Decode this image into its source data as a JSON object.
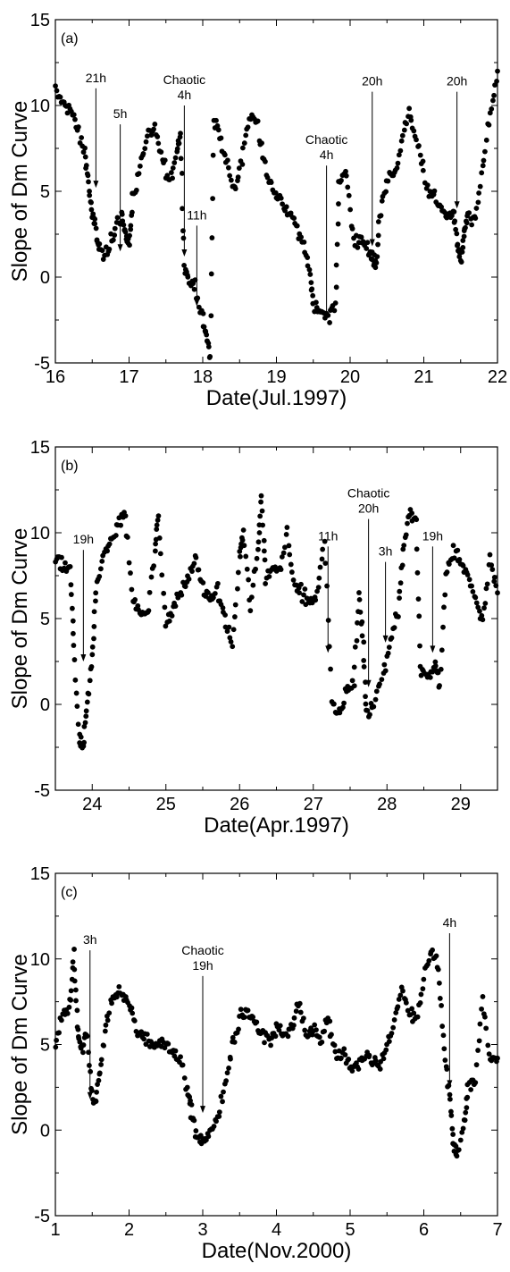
{
  "chart_data": [
    {
      "type": "scatter",
      "panel_label": "(a)",
      "xlabel": "Date(Jul.1997)",
      "ylabel": "Slope of Dm Curve",
      "xlim": [
        16,
        22
      ],
      "ylim": [
        -5,
        15
      ],
      "xticks": [
        16,
        17,
        18,
        19,
        20,
        21,
        22
      ],
      "yticks": [
        -5,
        0,
        5,
        10,
        15
      ],
      "anchors": [
        [
          16.0,
          10.8
        ],
        [
          16.1,
          10.2
        ],
        [
          16.2,
          9.8
        ],
        [
          16.3,
          8.5
        ],
        [
          16.4,
          7.3
        ],
        [
          16.45,
          5.5
        ],
        [
          16.5,
          3.5
        ],
        [
          16.55,
          2.8
        ],
        [
          16.6,
          1.5
        ],
        [
          16.7,
          1.4
        ],
        [
          16.8,
          2.8
        ],
        [
          16.9,
          3.6
        ],
        [
          16.95,
          2.5
        ],
        [
          17.0,
          2.0
        ],
        [
          17.05,
          4.5
        ],
        [
          17.15,
          6.3
        ],
        [
          17.25,
          8.0
        ],
        [
          17.35,
          8.5
        ],
        [
          17.45,
          7.0
        ],
        [
          17.55,
          5.5
        ],
        [
          17.65,
          7.5
        ],
        [
          17.7,
          8.2
        ],
        [
          17.75,
          0.8
        ],
        [
          17.8,
          0.0
        ],
        [
          17.9,
          -0.5
        ],
        [
          18.0,
          -2.5
        ],
        [
          18.05,
          -3.5
        ],
        [
          18.1,
          -4.5
        ],
        [
          18.15,
          9.2
        ],
        [
          18.25,
          8.0
        ],
        [
          18.35,
          6.2
        ],
        [
          18.45,
          5.0
        ],
        [
          18.55,
          7.5
        ],
        [
          18.65,
          9.5
        ],
        [
          18.75,
          8.8
        ],
        [
          18.85,
          6.5
        ],
        [
          18.95,
          4.9
        ],
        [
          19.05,
          4.6
        ],
        [
          19.15,
          3.8
        ],
        [
          19.25,
          3.2
        ],
        [
          19.35,
          2.0
        ],
        [
          19.45,
          0.5
        ],
        [
          19.5,
          -1.5
        ],
        [
          19.6,
          -2.0
        ],
        [
          19.7,
          -2.5
        ],
        [
          19.8,
          -1.5
        ],
        [
          19.85,
          5.5
        ],
        [
          19.95,
          6.0
        ],
        [
          20.05,
          2.0
        ],
        [
          20.15,
          2.3
        ],
        [
          20.25,
          1.5
        ],
        [
          20.3,
          1.2
        ],
        [
          20.35,
          0.5
        ],
        [
          20.4,
          3.5
        ],
        [
          20.5,
          5.5
        ],
        [
          20.6,
          6.0
        ],
        [
          20.7,
          8.0
        ],
        [
          20.8,
          9.5
        ],
        [
          20.9,
          8.0
        ],
        [
          21.0,
          6.0
        ],
        [
          21.1,
          4.8
        ],
        [
          21.2,
          4.2
        ],
        [
          21.3,
          3.6
        ],
        [
          21.4,
          3.8
        ],
        [
          21.45,
          2.0
        ],
        [
          21.5,
          1.0
        ],
        [
          21.55,
          2.5
        ],
        [
          21.6,
          3.5
        ],
        [
          21.7,
          3.2
        ],
        [
          21.8,
          6.5
        ],
        [
          21.9,
          9.5
        ],
        [
          22.0,
          12.0
        ]
      ],
      "annotations": [
        {
          "lines": [
            "21h"
          ],
          "x": 16.55,
          "y_from": 11.0,
          "y_to": 5.2
        },
        {
          "lines": [
            "5h"
          ],
          "x": 16.88,
          "y_from": 8.9,
          "y_to": 1.5
        },
        {
          "lines": [
            "Chaotic",
            "4h"
          ],
          "x": 17.75,
          "y_from": 10.0,
          "y_to": 1.2
        },
        {
          "lines": [
            "11h"
          ],
          "x": 17.92,
          "y_from": 3.0,
          "y_to": -1.7
        },
        {
          "lines": [
            "Chaotic",
            "4h"
          ],
          "x": 19.68,
          "y_from": 6.5,
          "y_to": -2.5
        },
        {
          "lines": [
            "20h"
          ],
          "x": 20.3,
          "y_from": 10.8,
          "y_to": 1.8
        },
        {
          "lines": [
            "20h"
          ],
          "x": 21.45,
          "y_from": 10.8,
          "y_to": 4.0
        }
      ]
    },
    {
      "type": "scatter",
      "panel_label": "(b)",
      "xlabel": "Date(Apr.1997)",
      "ylabel": "Slope of Dm Curve",
      "xlim": [
        23.5,
        29.5
      ],
      "ylim": [
        -5,
        15
      ],
      "xticks": [
        24,
        25,
        26,
        27,
        28,
        29
      ],
      "yticks": [
        -5,
        0,
        5,
        10,
        15
      ],
      "anchors": [
        [
          23.5,
          8.2
        ],
        [
          23.6,
          8.1
        ],
        [
          23.7,
          7.8
        ],
        [
          23.75,
          3.5
        ],
        [
          23.82,
          -2.0
        ],
        [
          23.88,
          -2.6
        ],
        [
          23.93,
          0.0
        ],
        [
          24.0,
          2.8
        ],
        [
          24.05,
          6.8
        ],
        [
          24.15,
          8.5
        ],
        [
          24.25,
          9.5
        ],
        [
          24.35,
          10.5
        ],
        [
          24.45,
          11.0
        ],
        [
          24.55,
          6.0
        ],
        [
          24.65,
          5.5
        ],
        [
          24.75,
          5.2
        ],
        [
          24.85,
          9.0
        ],
        [
          24.9,
          11.0
        ],
        [
          25.0,
          4.5
        ],
        [
          25.1,
          5.5
        ],
        [
          25.2,
          6.5
        ],
        [
          25.3,
          7.2
        ],
        [
          25.4,
          8.5
        ],
        [
          25.5,
          6.8
        ],
        [
          25.6,
          6.2
        ],
        [
          25.7,
          6.6
        ],
        [
          25.8,
          5.0
        ],
        [
          25.9,
          3.5
        ],
        [
          26.0,
          8.5
        ],
        [
          26.05,
          10.0
        ],
        [
          26.15,
          5.5
        ],
        [
          26.25,
          9.0
        ],
        [
          26.3,
          12.0
        ],
        [
          26.35,
          7.5
        ],
        [
          26.45,
          8.0
        ],
        [
          26.55,
          7.8
        ],
        [
          26.65,
          10.0
        ],
        [
          26.75,
          6.8
        ],
        [
          26.85,
          6.5
        ],
        [
          26.95,
          6.0
        ],
        [
          27.05,
          6.2
        ],
        [
          27.15,
          9.8
        ],
        [
          27.25,
          0.3
        ],
        [
          27.35,
          -0.5
        ],
        [
          27.45,
          0.8
        ],
        [
          27.55,
          1.2
        ],
        [
          27.62,
          6.5
        ],
        [
          27.68,
          3.5
        ],
        [
          27.72,
          -0.5
        ],
        [
          27.82,
          0.0
        ],
        [
          27.95,
          1.8
        ],
        [
          28.05,
          3.8
        ],
        [
          28.15,
          5.5
        ],
        [
          28.22,
          9.0
        ],
        [
          28.3,
          11.2
        ],
        [
          28.4,
          10.5
        ],
        [
          28.45,
          2.0
        ],
        [
          28.55,
          1.5
        ],
        [
          28.65,
          2.5
        ],
        [
          28.72,
          1.0
        ],
        [
          28.8,
          7.5
        ],
        [
          28.9,
          9.0
        ],
        [
          29.0,
          8.5
        ],
        [
          29.1,
          7.5
        ],
        [
          29.2,
          6.0
        ],
        [
          29.3,
          4.8
        ],
        [
          29.4,
          8.5
        ],
        [
          29.5,
          6.5
        ]
      ],
      "annotations": [
        {
          "lines": [
            "19h"
          ],
          "x": 23.88,
          "y_from": 9.0,
          "y_to": 2.5
        },
        {
          "lines": [
            "11h"
          ],
          "x": 27.2,
          "y_from": 9.2,
          "y_to": 3.0
        },
        {
          "lines": [
            "Chaotic",
            "20h"
          ],
          "x": 27.75,
          "y_from": 10.8,
          "y_to": 1.0
        },
        {
          "lines": [
            "3h"
          ],
          "x": 27.98,
          "y_from": 8.3,
          "y_to": 3.6
        },
        {
          "lines": [
            "19h"
          ],
          "x": 28.62,
          "y_from": 9.2,
          "y_to": 3.0
        }
      ]
    },
    {
      "type": "scatter",
      "panel_label": "(c)",
      "xlabel": "Date(Nov.2000)",
      "ylabel": "Slope of Dm Curve",
      "xlim": [
        1,
        7
      ],
      "ylim": [
        -5,
        15
      ],
      "xticks": [
        1,
        2,
        3,
        4,
        5,
        6,
        7
      ],
      "yticks": [
        -5,
        0,
        5,
        10,
        15
      ],
      "anchors": [
        [
          1.0,
          5.0
        ],
        [
          1.1,
          6.8
        ],
        [
          1.2,
          7.2
        ],
        [
          1.25,
          10.5
        ],
        [
          1.3,
          6.0
        ],
        [
          1.35,
          4.5
        ],
        [
          1.42,
          5.8
        ],
        [
          1.5,
          2.0
        ],
        [
          1.55,
          1.5
        ],
        [
          1.62,
          4.0
        ],
        [
          1.7,
          6.5
        ],
        [
          1.8,
          7.8
        ],
        [
          1.9,
          8.0
        ],
        [
          2.0,
          7.5
        ],
        [
          2.1,
          5.8
        ],
        [
          2.2,
          5.5
        ],
        [
          2.3,
          5.2
        ],
        [
          2.4,
          5.0
        ],
        [
          2.5,
          5.0
        ],
        [
          2.6,
          4.5
        ],
        [
          2.7,
          4.2
        ],
        [
          2.8,
          2.0
        ],
        [
          2.85,
          1.0
        ],
        [
          2.92,
          -0.5
        ],
        [
          3.0,
          -0.8
        ],
        [
          3.1,
          -0.2
        ],
        [
          3.2,
          0.8
        ],
        [
          3.3,
          2.5
        ],
        [
          3.4,
          5.0
        ],
        [
          3.5,
          6.5
        ],
        [
          3.6,
          7.0
        ],
        [
          3.7,
          6.5
        ],
        [
          3.8,
          5.5
        ],
        [
          3.9,
          5.0
        ],
        [
          4.0,
          6.0
        ],
        [
          4.1,
          5.5
        ],
        [
          4.2,
          6.0
        ],
        [
          4.3,
          7.5
        ],
        [
          4.4,
          5.5
        ],
        [
          4.5,
          6.0
        ],
        [
          4.6,
          5.0
        ],
        [
          4.7,
          6.5
        ],
        [
          4.8,
          4.5
        ],
        [
          4.9,
          4.5
        ],
        [
          5.0,
          4.0
        ],
        [
          5.1,
          3.8
        ],
        [
          5.2,
          4.5
        ],
        [
          5.3,
          4.2
        ],
        [
          5.4,
          3.8
        ],
        [
          5.5,
          5.0
        ],
        [
          5.6,
          6.5
        ],
        [
          5.7,
          8.5
        ],
        [
          5.8,
          7.0
        ],
        [
          5.9,
          6.5
        ],
        [
          6.0,
          9.0
        ],
        [
          6.1,
          10.5
        ],
        [
          6.2,
          9.5
        ],
        [
          6.28,
          4.5
        ],
        [
          6.35,
          2.0
        ],
        [
          6.4,
          -0.8
        ],
        [
          6.45,
          -1.5
        ],
        [
          6.55,
          0.5
        ],
        [
          6.6,
          2.5
        ],
        [
          6.7,
          3.0
        ],
        [
          6.8,
          7.5
        ],
        [
          6.9,
          4.0
        ],
        [
          7.0,
          4.2
        ]
      ],
      "annotations": [
        {
          "lines": [
            "3h"
          ],
          "x": 1.47,
          "y_from": 10.5,
          "y_to": 1.8
        },
        {
          "lines": [
            "Chaotic",
            "19h"
          ],
          "x": 3.0,
          "y_from": 9.0,
          "y_to": 1.0
        },
        {
          "lines": [
            "4h"
          ],
          "x": 6.35,
          "y_from": 11.5,
          "y_to": 2.5
        }
      ]
    }
  ]
}
